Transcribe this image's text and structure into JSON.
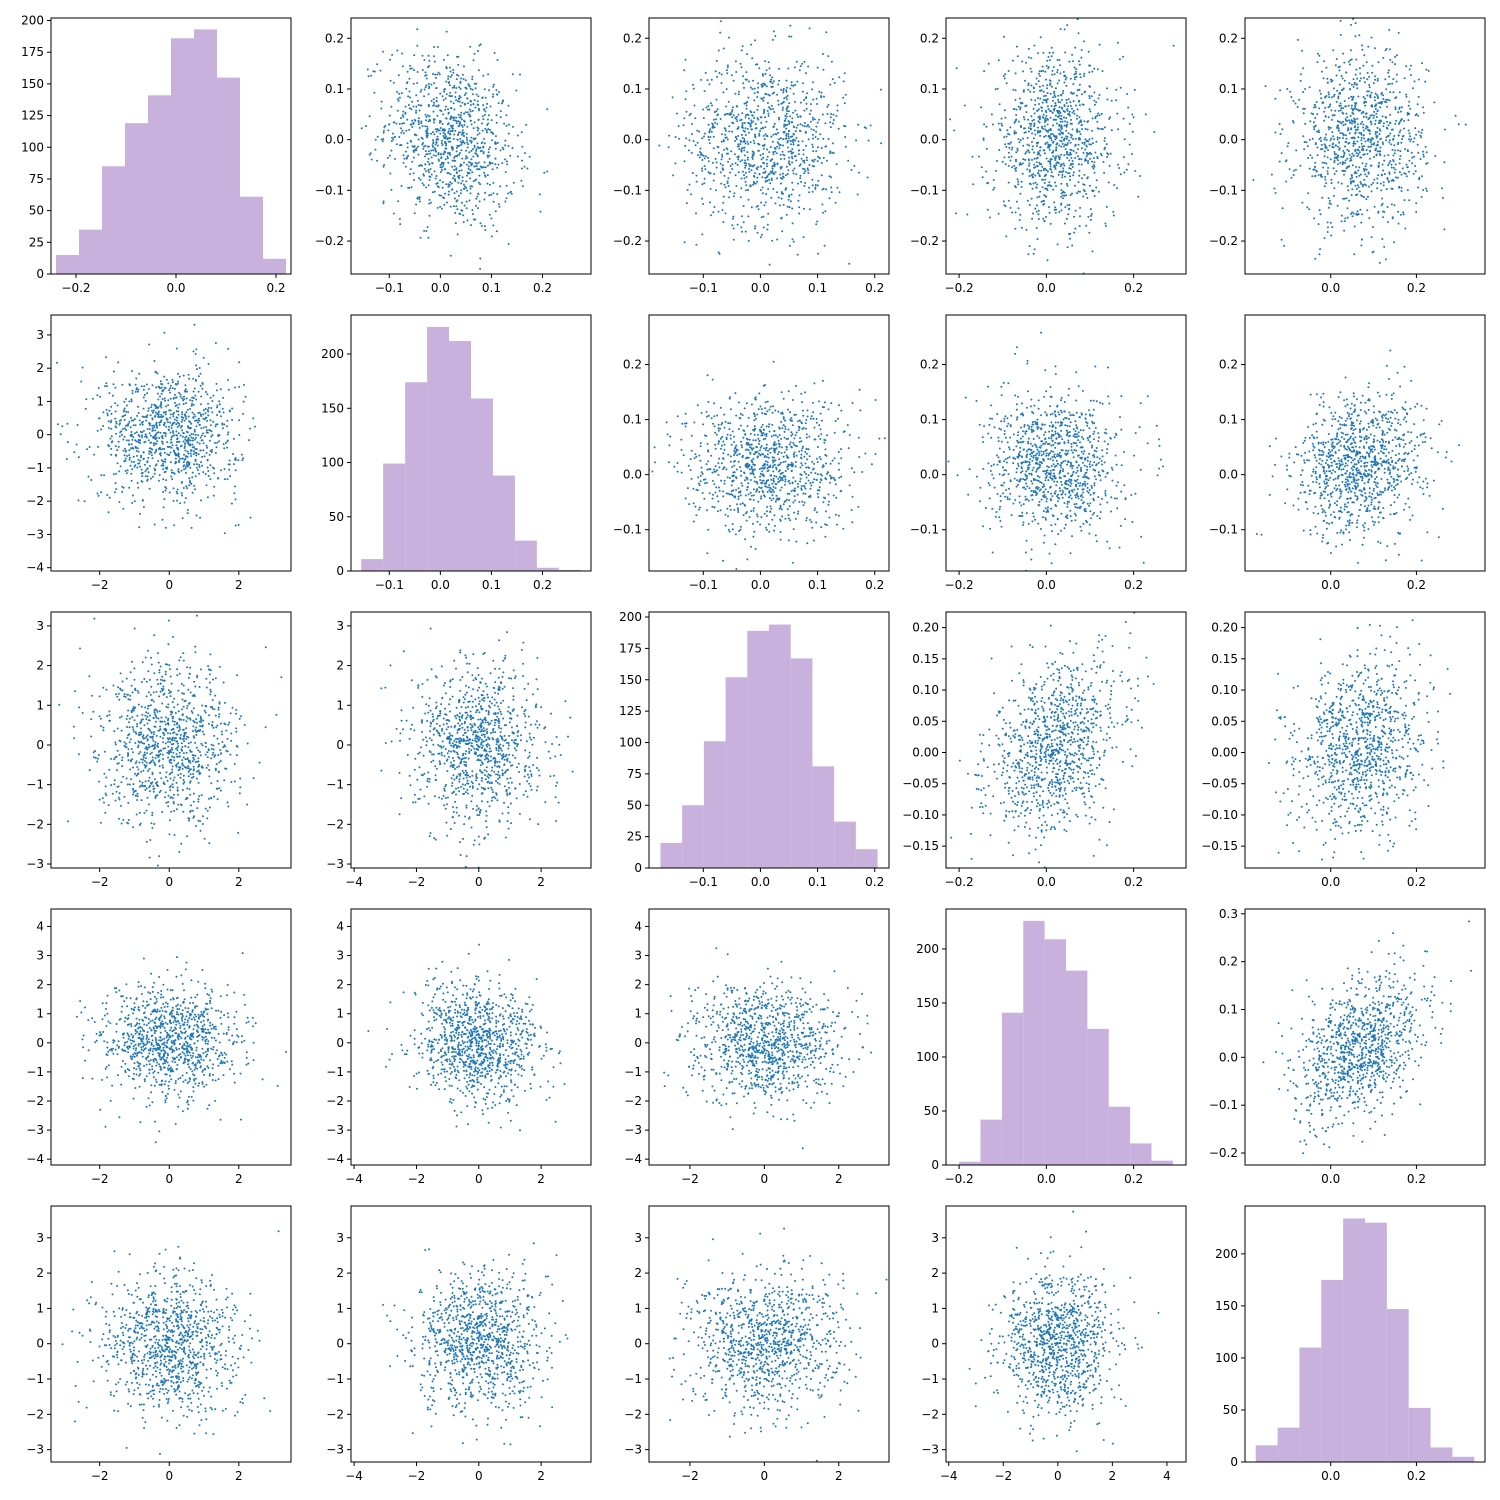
{
  "figure": {
    "grid_rows": 5,
    "grid_cols": 5,
    "hist_color": "#c8b2dd",
    "scatter_color": "#1f77b4"
  },
  "chart_data": [
    {
      "type": "histogram",
      "row": 0,
      "col": 0,
      "x_var": 1,
      "xlim": [
        -0.25,
        0.23
      ],
      "ylim": [
        0,
        202
      ],
      "xticks": [
        -0.2,
        0.0,
        0.2
      ],
      "yticks": [
        0,
        25,
        50,
        75,
        100,
        125,
        150,
        175,
        200
      ],
      "tick_labels_x": [
        "−0.2",
        "0.0",
        "0.2"
      ],
      "tick_labels_y": [
        "0",
        "25",
        "50",
        "75",
        "100",
        "125",
        "150",
        "175",
        "200"
      ],
      "bin_edges": [
        -0.24,
        -0.194,
        -0.148,
        -0.102,
        -0.056,
        -0.01,
        0.036,
        0.082,
        0.128,
        0.174,
        0.22
      ],
      "counts": [
        15,
        35,
        85,
        119,
        141,
        186,
        193,
        155,
        61,
        12
      ]
    },
    {
      "type": "scatter",
      "row": 0,
      "col": 1,
      "x_var": 2,
      "y_var": 1,
      "n_points": 1000,
      "xlim": [
        -0.175,
        0.295
      ],
      "ylim": [
        -0.265,
        0.24
      ],
      "xticks": [
        -0.1,
        0.0,
        0.1,
        0.2
      ],
      "yticks": [
        -0.2,
        -0.1,
        0.0,
        0.1,
        0.2
      ],
      "tick_labels_x": [
        "−0.1",
        "0.0",
        "0.1",
        "0.2"
      ],
      "tick_labels_y": [
        "−0.2",
        "−0.1",
        "0.0",
        "0.1",
        "0.2"
      ],
      "x_mean": 0.02,
      "x_sd": 0.063,
      "y_mean": 0.0,
      "y_sd": 0.085,
      "corr": -0.2
    },
    {
      "type": "scatter",
      "row": 0,
      "col": 2,
      "x_var": 3,
      "y_var": 1,
      "n_points": 1000,
      "xlim": [
        -0.195,
        0.225
      ],
      "ylim": [
        -0.265,
        0.24
      ],
      "xticks": [
        -0.1,
        0.0,
        0.1,
        0.2
      ],
      "yticks": [
        -0.2,
        -0.1,
        0.0,
        0.1,
        0.2
      ],
      "tick_labels_x": [
        "−0.1",
        "0.0",
        "0.1",
        "0.2"
      ],
      "tick_labels_y": [
        "−0.2",
        "−0.1",
        "0.0",
        "0.1",
        "0.2"
      ],
      "x_mean": 0.01,
      "x_sd": 0.07,
      "y_mean": 0.0,
      "y_sd": 0.085,
      "corr": 0.0
    },
    {
      "type": "scatter",
      "row": 0,
      "col": 3,
      "x_var": 4,
      "y_var": 1,
      "n_points": 1000,
      "xlim": [
        -0.23,
        0.32
      ],
      "ylim": [
        -0.265,
        0.24
      ],
      "xticks": [
        -0.2,
        0.0,
        0.2
      ],
      "yticks": [
        -0.2,
        -0.1,
        0.0,
        0.1,
        0.2
      ],
      "tick_labels_x": [
        "−0.2",
        "0.0",
        "0.2"
      ],
      "tick_labels_y": [
        "−0.2",
        "−0.1",
        "0.0",
        "0.1",
        "0.2"
      ],
      "x_mean": 0.02,
      "x_sd": 0.075,
      "y_mean": 0.0,
      "y_sd": 0.085,
      "corr": 0.0
    },
    {
      "type": "scatter",
      "row": 0,
      "col": 4,
      "x_var": 5,
      "y_var": 1,
      "n_points": 1000,
      "xlim": [
        -0.2,
        0.36
      ],
      "ylim": [
        -0.265,
        0.24
      ],
      "xticks": [
        0.0,
        0.2
      ],
      "yticks": [
        -0.2,
        -0.1,
        0.0,
        0.1,
        0.2
      ],
      "tick_labels_x": [
        "0.0",
        "0.2"
      ],
      "tick_labels_y": [
        "−0.2",
        "−0.1",
        "0.0",
        "0.1",
        "0.2"
      ],
      "x_mean": 0.07,
      "x_sd": 0.075,
      "y_mean": 0.0,
      "y_sd": 0.085,
      "corr": 0.0
    },
    {
      "type": "scatter",
      "row": 1,
      "col": 0,
      "x_var": 1,
      "y_var": 2,
      "n_points": 1000,
      "xlim": [
        -3.4,
        3.5
      ],
      "ylim": [
        -4.1,
        3.6
      ],
      "xticks": [
        -2,
        0,
        2
      ],
      "yticks": [
        -4,
        -3,
        -2,
        -1,
        0,
        1,
        2,
        3
      ],
      "tick_labels_x": [
        "−2",
        "0",
        "2"
      ],
      "tick_labels_y": [
        "−4",
        "−3",
        "−2",
        "−1",
        "0",
        "1",
        "2",
        "3"
      ],
      "x_mean": 0.0,
      "x_sd": 1.0,
      "y_mean": 0.0,
      "y_sd": 1.0,
      "corr": 0.0
    },
    {
      "type": "histogram",
      "row": 1,
      "col": 1,
      "x_var": 2,
      "xlim": [
        -0.175,
        0.295
      ],
      "ylim": [
        0,
        236
      ],
      "xticks": [
        -0.1,
        0.0,
        0.1,
        0.2
      ],
      "yticks": [
        0,
        50,
        100,
        150,
        200
      ],
      "tick_labels_x": [
        "−0.1",
        "0.0",
        "0.1",
        "0.2"
      ],
      "tick_labels_y": [
        "0",
        "50",
        "100",
        "150",
        "200"
      ],
      "bin_edges": [
        -0.155,
        -0.112,
        -0.069,
        -0.026,
        0.017,
        0.06,
        0.103,
        0.146,
        0.189,
        0.232,
        0.275
      ],
      "counts": [
        11,
        99,
        174,
        225,
        212,
        159,
        88,
        28,
        3,
        1
      ]
    },
    {
      "type": "scatter",
      "row": 1,
      "col": 2,
      "x_var": 3,
      "y_var": 2,
      "n_points": 1000,
      "xlim": [
        -0.195,
        0.225
      ],
      "ylim": [
        -0.175,
        0.29
      ],
      "xticks": [
        -0.1,
        0.0,
        0.1,
        0.2
      ],
      "yticks": [
        -0.1,
        0.0,
        0.1,
        0.2
      ],
      "tick_labels_x": [
        "−0.1",
        "0.0",
        "0.1",
        "0.2"
      ],
      "tick_labels_y": [
        "−0.1",
        "0.0",
        "0.1",
        "0.2"
      ],
      "x_mean": 0.01,
      "x_sd": 0.07,
      "y_mean": 0.02,
      "y_sd": 0.063,
      "corr": 0.0
    },
    {
      "type": "scatter",
      "row": 1,
      "col": 3,
      "x_var": 4,
      "y_var": 2,
      "n_points": 1000,
      "xlim": [
        -0.23,
        0.32
      ],
      "ylim": [
        -0.175,
        0.29
      ],
      "xticks": [
        -0.2,
        0.0,
        0.2
      ],
      "yticks": [
        -0.1,
        0.0,
        0.1,
        0.2
      ],
      "tick_labels_x": [
        "−0.2",
        "0.0",
        "0.2"
      ],
      "tick_labels_y": [
        "−0.1",
        "0.0",
        "0.1",
        "0.2"
      ],
      "x_mean": 0.02,
      "x_sd": 0.075,
      "y_mean": 0.02,
      "y_sd": 0.063,
      "corr": 0.0
    },
    {
      "type": "scatter",
      "row": 1,
      "col": 4,
      "x_var": 5,
      "y_var": 2,
      "n_points": 1000,
      "xlim": [
        -0.2,
        0.36
      ],
      "ylim": [
        -0.175,
        0.29
      ],
      "xticks": [
        0.0,
        0.2
      ],
      "yticks": [
        -0.1,
        0.0,
        0.1,
        0.2
      ],
      "tick_labels_x": [
        "0.0",
        "0.2"
      ],
      "tick_labels_y": [
        "−0.1",
        "0.0",
        "0.1",
        "0.2"
      ],
      "x_mean": 0.07,
      "x_sd": 0.075,
      "y_mean": 0.02,
      "y_sd": 0.063,
      "corr": 0.15
    },
    {
      "type": "scatter",
      "row": 2,
      "col": 0,
      "x_var": 1,
      "y_var": 3,
      "n_points": 1000,
      "xlim": [
        -3.4,
        3.5
      ],
      "ylim": [
        -3.1,
        3.35
      ],
      "xticks": [
        -2,
        0,
        2
      ],
      "yticks": [
        -3,
        -2,
        -1,
        0,
        1,
        2,
        3
      ],
      "tick_labels_x": [
        "−2",
        "0",
        "2"
      ],
      "tick_labels_y": [
        "−3",
        "−2",
        "−1",
        "0",
        "1",
        "2",
        "3"
      ],
      "x_mean": 0.0,
      "x_sd": 1.0,
      "y_mean": 0.0,
      "y_sd": 1.0,
      "corr": 0.0
    },
    {
      "type": "scatter",
      "row": 2,
      "col": 1,
      "x_var": 2,
      "y_var": 3,
      "n_points": 1000,
      "xlim": [
        -4.1,
        3.6
      ],
      "ylim": [
        -3.1,
        3.35
      ],
      "xticks": [
        -4,
        -2,
        0,
        2
      ],
      "yticks": [
        -3,
        -2,
        -1,
        0,
        1,
        2,
        3
      ],
      "tick_labels_x": [
        "−4",
        "−2",
        "0",
        "2"
      ],
      "tick_labels_y": [
        "−3",
        "−2",
        "−1",
        "0",
        "1",
        "2",
        "3"
      ],
      "x_mean": 0.0,
      "x_sd": 1.0,
      "y_mean": 0.0,
      "y_sd": 1.0,
      "corr": 0.0
    },
    {
      "type": "histogram",
      "row": 2,
      "col": 2,
      "x_var": 3,
      "xlim": [
        -0.195,
        0.225
      ],
      "ylim": [
        0,
        204
      ],
      "xticks": [
        -0.1,
        0.0,
        0.1,
        0.2
      ],
      "yticks": [
        0,
        25,
        50,
        75,
        100,
        125,
        150,
        175,
        200
      ],
      "tick_labels_x": [
        "−0.1",
        "0.0",
        "0.1",
        "0.2"
      ],
      "tick_labels_y": [
        "0",
        "25",
        "50",
        "75",
        "100",
        "125",
        "150",
        "175",
        "200"
      ],
      "bin_edges": [
        -0.175,
        -0.137,
        -0.099,
        -0.061,
        -0.023,
        0.015,
        0.053,
        0.091,
        0.129,
        0.167,
        0.205
      ],
      "counts": [
        20,
        50,
        101,
        152,
        189,
        194,
        167,
        81,
        37,
        15
      ]
    },
    {
      "type": "scatter",
      "row": 2,
      "col": 3,
      "x_var": 4,
      "y_var": 3,
      "n_points": 1000,
      "xlim": [
        -0.23,
        0.32
      ],
      "ylim": [
        -0.185,
        0.225
      ],
      "xticks": [
        -0.2,
        0.0,
        0.2
      ],
      "yticks": [
        -0.15,
        -0.1,
        -0.05,
        0.0,
        0.05,
        0.1,
        0.15,
        0.2
      ],
      "tick_labels_x": [
        "−0.2",
        "0.0",
        "0.2"
      ],
      "tick_labels_y": [
        "−0.15",
        "−0.10",
        "−0.05",
        "0.00",
        "0.05",
        "0.10",
        "0.15",
        "0.20"
      ],
      "x_mean": 0.02,
      "x_sd": 0.075,
      "y_mean": 0.01,
      "y_sd": 0.07,
      "corr": 0.35
    },
    {
      "type": "scatter",
      "row": 2,
      "col": 4,
      "x_var": 5,
      "y_var": 3,
      "n_points": 1000,
      "xlim": [
        -0.2,
        0.36
      ],
      "ylim": [
        -0.185,
        0.225
      ],
      "xticks": [
        0.0,
        0.2
      ],
      "yticks": [
        -0.15,
        -0.1,
        -0.05,
        0.0,
        0.05,
        0.1,
        0.15,
        0.2
      ],
      "tick_labels_x": [
        "0.0",
        "0.2"
      ],
      "tick_labels_y": [
        "−0.15",
        "−0.10",
        "−0.05",
        "0.00",
        "0.05",
        "0.10",
        "0.15",
        "0.20"
      ],
      "x_mean": 0.07,
      "x_sd": 0.075,
      "y_mean": 0.01,
      "y_sd": 0.07,
      "corr": 0.15
    },
    {
      "type": "scatter",
      "row": 3,
      "col": 0,
      "x_var": 1,
      "y_var": 4,
      "n_points": 1000,
      "xlim": [
        -3.4,
        3.5
      ],
      "ylim": [
        -4.2,
        4.6
      ],
      "xticks": [
        -2,
        0,
        2
      ],
      "yticks": [
        -4,
        -3,
        -2,
        -1,
        0,
        1,
        2,
        3,
        4
      ],
      "tick_labels_x": [
        "−2",
        "0",
        "2"
      ],
      "tick_labels_y": [
        "−4",
        "−3",
        "−2",
        "−1",
        "0",
        "1",
        "2",
        "3",
        "4"
      ],
      "x_mean": 0.0,
      "x_sd": 1.0,
      "y_mean": 0.0,
      "y_sd": 1.0,
      "corr": 0.0
    },
    {
      "type": "scatter",
      "row": 3,
      "col": 1,
      "x_var": 2,
      "y_var": 4,
      "n_points": 1000,
      "xlim": [
        -4.1,
        3.6
      ],
      "ylim": [
        -4.2,
        4.6
      ],
      "xticks": [
        -4,
        -2,
        0,
        2
      ],
      "yticks": [
        -4,
        -3,
        -2,
        -1,
        0,
        1,
        2,
        3,
        4
      ],
      "tick_labels_x": [
        "−4",
        "−2",
        "0",
        "2"
      ],
      "tick_labels_y": [
        "−4",
        "−3",
        "−2",
        "−1",
        "0",
        "1",
        "2",
        "3",
        "4"
      ],
      "x_mean": 0.0,
      "x_sd": 1.0,
      "y_mean": 0.0,
      "y_sd": 1.0,
      "corr": 0.0
    },
    {
      "type": "scatter",
      "row": 3,
      "col": 2,
      "x_var": 3,
      "y_var": 4,
      "n_points": 1000,
      "xlim": [
        -3.1,
        3.35
      ],
      "ylim": [
        -4.2,
        4.6
      ],
      "xticks": [
        -2,
        0,
        2
      ],
      "yticks": [
        -4,
        -3,
        -2,
        -1,
        0,
        1,
        2,
        3,
        4
      ],
      "tick_labels_x": [
        "−2",
        "0",
        "2"
      ],
      "tick_labels_y": [
        "−4",
        "−3",
        "−2",
        "−1",
        "0",
        "1",
        "2",
        "3",
        "4"
      ],
      "x_mean": 0.0,
      "x_sd": 1.0,
      "y_mean": 0.0,
      "y_sd": 1.0,
      "corr": 0.0
    },
    {
      "type": "histogram",
      "row": 3,
      "col": 3,
      "x_var": 4,
      "xlim": [
        -0.23,
        0.32
      ],
      "ylim": [
        0,
        237
      ],
      "xticks": [
        -0.2,
        0.0,
        0.2
      ],
      "yticks": [
        0,
        50,
        100,
        150,
        200
      ],
      "tick_labels_x": [
        "−0.2",
        "0.0",
        "0.2"
      ],
      "tick_labels_y": [
        "0",
        "50",
        "100",
        "150",
        "200"
      ],
      "bin_edges": [
        -0.2,
        -0.151,
        -0.102,
        -0.053,
        -0.004,
        0.045,
        0.094,
        0.143,
        0.192,
        0.241,
        0.29
      ],
      "counts": [
        3,
        42,
        141,
        226,
        209,
        180,
        126,
        54,
        20,
        4
      ]
    },
    {
      "type": "scatter",
      "row": 3,
      "col": 4,
      "x_var": 5,
      "y_var": 4,
      "n_points": 1000,
      "xlim": [
        -0.2,
        0.36
      ],
      "ylim": [
        -0.225,
        0.31
      ],
      "xticks": [
        0.0,
        0.2
      ],
      "yticks": [
        -0.2,
        -0.1,
        0.0,
        0.1,
        0.2,
        0.3
      ],
      "tick_labels_x": [
        "0.0",
        "0.2"
      ],
      "tick_labels_y": [
        "−0.2",
        "−0.1",
        "0.0",
        "0.1",
        "0.2",
        "0.3"
      ],
      "x_mean": 0.07,
      "x_sd": 0.075,
      "y_mean": 0.02,
      "y_sd": 0.075,
      "corr": 0.4
    },
    {
      "type": "scatter",
      "row": 4,
      "col": 0,
      "x_var": 1,
      "y_var": 5,
      "n_points": 1000,
      "xlim": [
        -3.4,
        3.5
      ],
      "ylim": [
        -3.35,
        3.9
      ],
      "xticks": [
        -2,
        0,
        2
      ],
      "yticks": [
        -3,
        -2,
        -1,
        0,
        1,
        2,
        3
      ],
      "tick_labels_x": [
        "−2",
        "0",
        "2"
      ],
      "tick_labels_y": [
        "−3",
        "−2",
        "−1",
        "0",
        "1",
        "2",
        "3"
      ],
      "x_mean": 0.0,
      "x_sd": 1.0,
      "y_mean": 0.0,
      "y_sd": 1.0,
      "corr": 0.0
    },
    {
      "type": "scatter",
      "row": 4,
      "col": 1,
      "x_var": 2,
      "y_var": 5,
      "n_points": 1000,
      "xlim": [
        -4.1,
        3.6
      ],
      "ylim": [
        -3.35,
        3.9
      ],
      "xticks": [
        -4,
        -2,
        0,
        2
      ],
      "yticks": [
        -3,
        -2,
        -1,
        0,
        1,
        2,
        3
      ],
      "tick_labels_x": [
        "−4",
        "−2",
        "0",
        "2"
      ],
      "tick_labels_y": [
        "−3",
        "−2",
        "−1",
        "0",
        "1",
        "2",
        "3"
      ],
      "x_mean": 0.0,
      "x_sd": 1.0,
      "y_mean": 0.0,
      "y_sd": 1.0,
      "corr": 0.0
    },
    {
      "type": "scatter",
      "row": 4,
      "col": 2,
      "x_var": 3,
      "y_var": 5,
      "n_points": 1000,
      "xlim": [
        -3.1,
        3.35
      ],
      "ylim": [
        -3.35,
        3.9
      ],
      "xticks": [
        -2,
        0,
        2
      ],
      "yticks": [
        -3,
        -2,
        -1,
        0,
        1,
        2,
        3
      ],
      "tick_labels_x": [
        "−2",
        "0",
        "2"
      ],
      "tick_labels_y": [
        "−3",
        "−2",
        "−1",
        "0",
        "1",
        "2",
        "3"
      ],
      "x_mean": 0.0,
      "x_sd": 1.0,
      "y_mean": 0.0,
      "y_sd": 1.0,
      "corr": 0.0
    },
    {
      "type": "scatter",
      "row": 4,
      "col": 3,
      "x_var": 4,
      "y_var": 5,
      "n_points": 1000,
      "xlim": [
        -4.1,
        4.7
      ],
      "ylim": [
        -3.35,
        3.9
      ],
      "xticks": [
        -4,
        -2,
        0,
        2,
        4
      ],
      "yticks": [
        -3,
        -2,
        -1,
        0,
        1,
        2,
        3
      ],
      "tick_labels_x": [
        "−4",
        "−2",
        "0",
        "2",
        "4"
      ],
      "tick_labels_y": [
        "−3",
        "−2",
        "−1",
        "0",
        "1",
        "2",
        "3"
      ],
      "x_mean": 0.0,
      "x_sd": 1.0,
      "y_mean": 0.0,
      "y_sd": 1.0,
      "corr": 0.0
    },
    {
      "type": "histogram",
      "row": 4,
      "col": 4,
      "x_var": 5,
      "xlim": [
        -0.2,
        0.36
      ],
      "ylim": [
        0,
        246
      ],
      "xticks": [
        0.0,
        0.2
      ],
      "yticks": [
        0,
        50,
        100,
        150,
        200
      ],
      "tick_labels_x": [
        "0.0",
        "0.2"
      ],
      "tick_labels_y": [
        "0",
        "50",
        "100",
        "150",
        "200"
      ],
      "bin_edges": [
        -0.175,
        -0.124,
        -0.073,
        -0.022,
        0.029,
        0.08,
        0.131,
        0.182,
        0.233,
        0.284,
        0.335
      ],
      "counts": [
        16,
        33,
        110,
        175,
        234,
        230,
        147,
        52,
        14,
        5
      ]
    }
  ]
}
